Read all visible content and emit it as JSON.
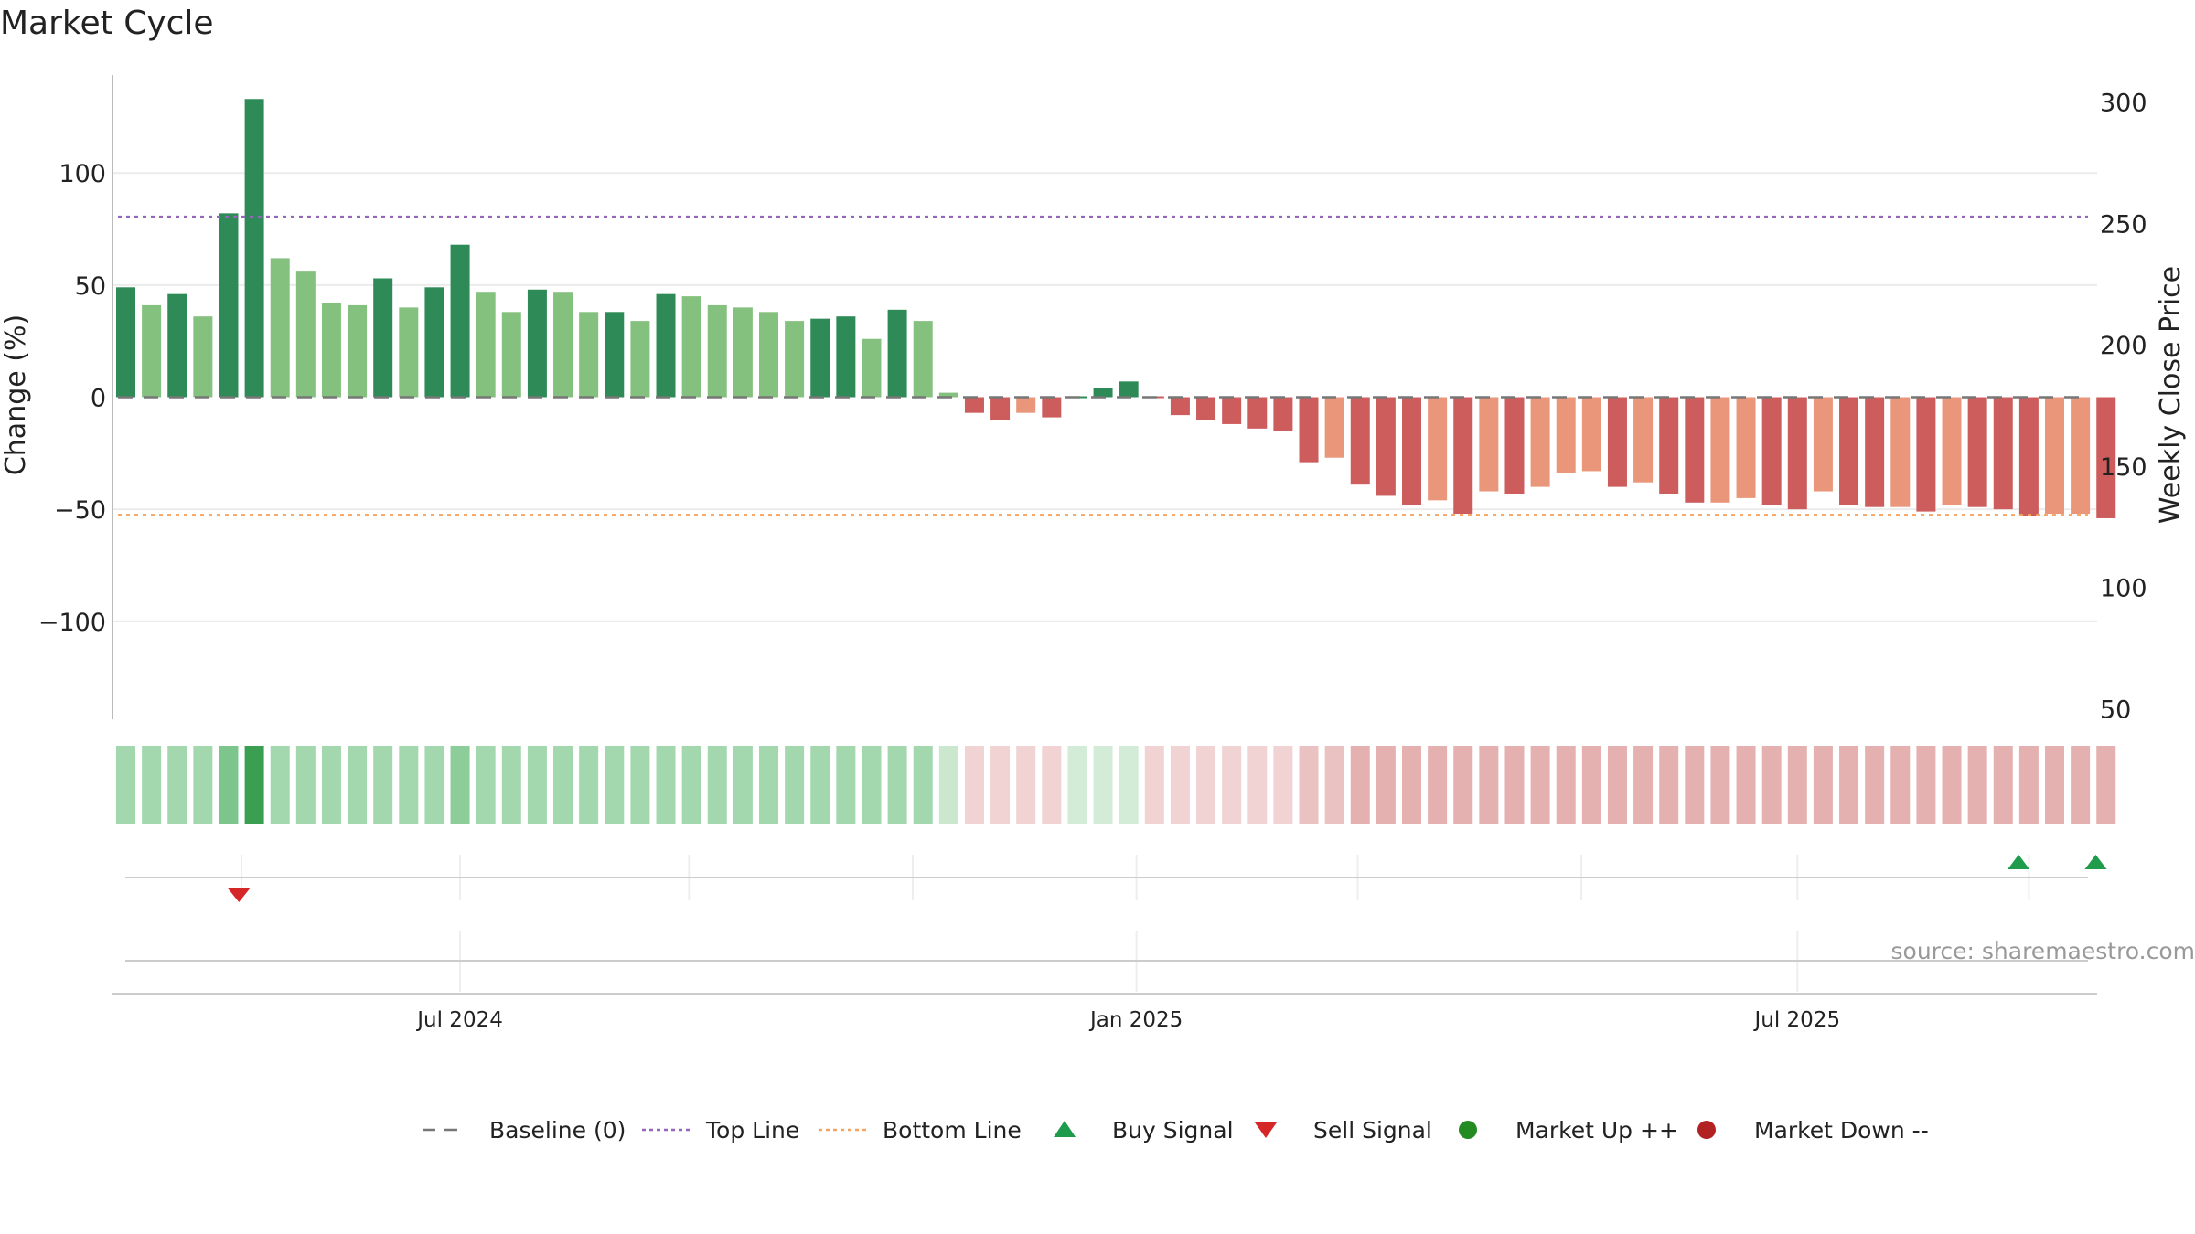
{
  "chart_data": {
    "type": "bar",
    "title": "Market Cycle",
    "ylabel": "Change (%)",
    "y2label": "Weekly Close Price",
    "ylim": [
      -145,
      142
    ],
    "y2lim": [
      45,
      307
    ],
    "yticks": [
      -100,
      -50,
      0,
      50,
      100
    ],
    "yticklabels": [
      "−100",
      "−50",
      "0",
      "50",
      "100"
    ],
    "y2ticks": [
      50,
      100,
      150,
      200,
      250,
      300
    ],
    "xticks": [
      {
        "label": "Jul 2024",
        "index": 13
      },
      {
        "label": "Jan 2025",
        "index": 39.3
      },
      {
        "label": "Jul 2025",
        "index": 65
      }
    ],
    "x_extra_gridlines": [
      4.5,
      21.9,
      30.6,
      47.9,
      56.6,
      74.0
    ],
    "reference_lines": {
      "baseline": 0,
      "top_line": 80.5,
      "bottom_line": -52.5
    },
    "values": [
      49,
      41,
      46,
      36,
      82,
      133,
      62,
      56,
      42,
      41,
      53,
      40,
      49,
      68,
      47,
      38,
      48,
      47,
      38,
      38,
      34,
      46,
      45,
      41,
      40,
      38,
      34,
      35,
      36,
      26,
      39,
      34,
      2,
      -7,
      -10,
      -7,
      -9,
      0,
      4,
      7,
      0,
      -8,
      -10,
      -12,
      -14,
      -15,
      -29,
      -27,
      -39,
      -44,
      -48,
      -46,
      -52,
      -42,
      -43,
      -40,
      -34,
      -33,
      -40,
      -38,
      -43,
      -47,
      -47,
      -45,
      -48,
      -50,
      -42,
      -48,
      -49,
      -49,
      -51,
      -48,
      -49,
      -50,
      -53,
      -52,
      -52,
      -54
    ],
    "bar_colors": [
      "#2e8b57",
      "#85c17e",
      "#2e8b57",
      "#85c17e",
      "#2e8b57",
      "#2e8b57",
      "#85c17e",
      "#85c17e",
      "#85c17e",
      "#85c17e",
      "#2e8b57",
      "#85c17e",
      "#2e8b57",
      "#2e8b57",
      "#85c17e",
      "#85c17e",
      "#2e8b57",
      "#85c17e",
      "#85c17e",
      "#2e8b57",
      "#85c17e",
      "#2e8b57",
      "#85c17e",
      "#85c17e",
      "#85c17e",
      "#85c17e",
      "#85c17e",
      "#2e8b57",
      "#2e8b57",
      "#85c17e",
      "#2e8b57",
      "#85c17e",
      "#85c17e",
      "#cd5c5c",
      "#cd5c5c",
      "#e9967a",
      "#cd5c5c",
      "#2e8b57",
      "#2e8b57",
      "#2e8b57",
      "#cd5c5c",
      "#cd5c5c",
      "#cd5c5c",
      "#cd5c5c",
      "#cd5c5c",
      "#cd5c5c",
      "#cd5c5c",
      "#e9967a",
      "#cd5c5c",
      "#cd5c5c",
      "#cd5c5c",
      "#e9967a",
      "#cd5c5c",
      "#e9967a",
      "#cd5c5c",
      "#e9967a",
      "#e9967a",
      "#e9967a",
      "#cd5c5c",
      "#e9967a",
      "#cd5c5c",
      "#cd5c5c",
      "#e9967a",
      "#e9967a",
      "#cd5c5c",
      "#cd5c5c",
      "#e9967a",
      "#cd5c5c",
      "#cd5c5c",
      "#e9967a",
      "#cd5c5c",
      "#e9967a",
      "#cd5c5c",
      "#cd5c5c",
      "#cd5c5c",
      "#e9967a",
      "#e9967a",
      "#cd5c5c"
    ],
    "heat_colors": [
      "#a3d7ae",
      "#a3d7ae",
      "#a3d7ae",
      "#a3d7ae",
      "#7cc68d",
      "#3a9f50",
      "#a3d7ae",
      "#a3d7ae",
      "#a3d7ae",
      "#a3d7ae",
      "#a3d7ae",
      "#a3d7ae",
      "#a3d7ae",
      "#8ccd9a",
      "#a3d7ae",
      "#a3d7ae",
      "#a3d7ae",
      "#a3d7ae",
      "#a3d7ae",
      "#a3d7ae",
      "#a3d7ae",
      "#a3d7ae",
      "#a3d7ae",
      "#a3d7ae",
      "#a3d7ae",
      "#a3d7ae",
      "#a3d7ae",
      "#a3d7ae",
      "#a3d7ae",
      "#a3d7ae",
      "#a3d7ae",
      "#a3d7ae",
      "#cbe8cf",
      "#f1d3d3",
      "#f1d3d3",
      "#f1d3d3",
      "#f1d3d3",
      "#d3ecd8",
      "#d3ecd8",
      "#d3ecd8",
      "#f1d3d3",
      "#f1d3d3",
      "#f1d3d3",
      "#f1d3d3",
      "#f1d3d3",
      "#f1d3d3",
      "#ebc2c2",
      "#ebc2c2",
      "#e5b0b0",
      "#e5b0b0",
      "#e5b0b0",
      "#e5b0b0",
      "#e5b0b0",
      "#e5b0b0",
      "#e5b0b0",
      "#e5b0b0",
      "#e5b0b0",
      "#e5b0b0",
      "#e5b0b0",
      "#e5b0b0",
      "#e5b0b0",
      "#e5b0b0",
      "#e5b0b0",
      "#e5b0b0",
      "#e5b0b0",
      "#e5b0b0",
      "#e5b0b0",
      "#e5b0b0",
      "#e5b0b0",
      "#e5b0b0",
      "#e5b0b0",
      "#e5b0b0",
      "#e5b0b0",
      "#e5b0b0",
      "#e5b0b0",
      "#e5b0b0",
      "#e5b0b0",
      "#e5b0b0"
    ],
    "buy_signals": [
      73.6,
      76.6
    ],
    "sell_signals": [
      4.4
    ],
    "legend": [
      {
        "label": "Baseline (0)",
        "symbol": "dash",
        "color": "#777777"
      },
      {
        "label": "Top Line",
        "symbol": "dotted",
        "color": "#9467bd"
      },
      {
        "label": "Bottom Line",
        "symbol": "dotted",
        "color": "#f4a460"
      },
      {
        "label": "Buy Signal",
        "symbol": "triangle-up",
        "color": "#1e9b4b"
      },
      {
        "label": "Sell Signal",
        "symbol": "triangle-down",
        "color": "#d62728"
      },
      {
        "label": "Market Up ++",
        "symbol": "circle",
        "color": "#228b22"
      },
      {
        "label": "Market Down --",
        "symbol": "circle",
        "color": "#b22222"
      }
    ],
    "legend_position": "bottom-center",
    "grid": true,
    "source": "source: sharemaestro.com"
  }
}
